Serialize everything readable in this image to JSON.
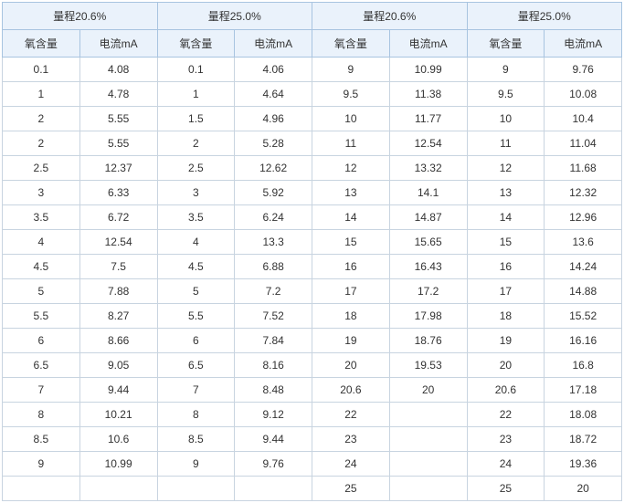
{
  "table": {
    "header_bg": "#eaf2fb",
    "header_border": "#a8c4e0",
    "cell_border": "#c8d4e0",
    "group_headers": [
      "量程20.6%",
      "量程25.0%",
      "量程20.6%",
      "量程25.0%"
    ],
    "sub_headers": [
      "氧含量",
      "电流mA",
      "氧含量",
      "电流mA",
      "氧含量",
      "电流mA",
      "氧含量",
      "电流mA"
    ],
    "rows": [
      [
        "0.1",
        "4.08",
        "0.1",
        "4.06",
        "9",
        "10.99",
        "9",
        "9.76"
      ],
      [
        "1",
        "4.78",
        "1",
        "4.64",
        "9.5",
        "11.38",
        "9.5",
        "10.08"
      ],
      [
        "2",
        "5.55",
        "1.5",
        "4.96",
        "10",
        "11.77",
        "10",
        "10.4"
      ],
      [
        "2",
        "5.55",
        "2",
        "5.28",
        "11",
        "12.54",
        "11",
        "11.04"
      ],
      [
        "2.5",
        "12.37",
        "2.5",
        "12.62",
        "12",
        "13.32",
        "12",
        "11.68"
      ],
      [
        "3",
        "6.33",
        "3",
        "5.92",
        "13",
        "14.1",
        "13",
        "12.32"
      ],
      [
        "3.5",
        "6.72",
        "3.5",
        "6.24",
        "14",
        "14.87",
        "14",
        "12.96"
      ],
      [
        "4",
        "12.54",
        "4",
        "13.3",
        "15",
        "15.65",
        "15",
        "13.6"
      ],
      [
        "4.5",
        "7.5",
        "4.5",
        "6.88",
        "16",
        "16.43",
        "16",
        "14.24"
      ],
      [
        "5",
        "7.88",
        "5",
        "7.2",
        "17",
        "17.2",
        "17",
        "14.88"
      ],
      [
        "5.5",
        "8.27",
        "5.5",
        "7.52",
        "18",
        "17.98",
        "18",
        "15.52"
      ],
      [
        "6",
        "8.66",
        "6",
        "7.84",
        "19",
        "18.76",
        "19",
        "16.16"
      ],
      [
        "6.5",
        "9.05",
        "6.5",
        "8.16",
        "20",
        "19.53",
        "20",
        "16.8"
      ],
      [
        "7",
        "9.44",
        "7",
        "8.48",
        "20.6",
        "20",
        "20.6",
        "17.18"
      ],
      [
        "8",
        "10.21",
        "8",
        "9.12",
        "22",
        "",
        "22",
        "18.08"
      ],
      [
        "8.5",
        "10.6",
        "8.5",
        "9.44",
        "23",
        "",
        "23",
        "18.72"
      ],
      [
        "9",
        "10.99",
        "9",
        "9.76",
        "24",
        "",
        "24",
        "19.36"
      ],
      [
        "",
        "",
        "",
        "",
        "25",
        "",
        "25",
        "20"
      ]
    ]
  }
}
